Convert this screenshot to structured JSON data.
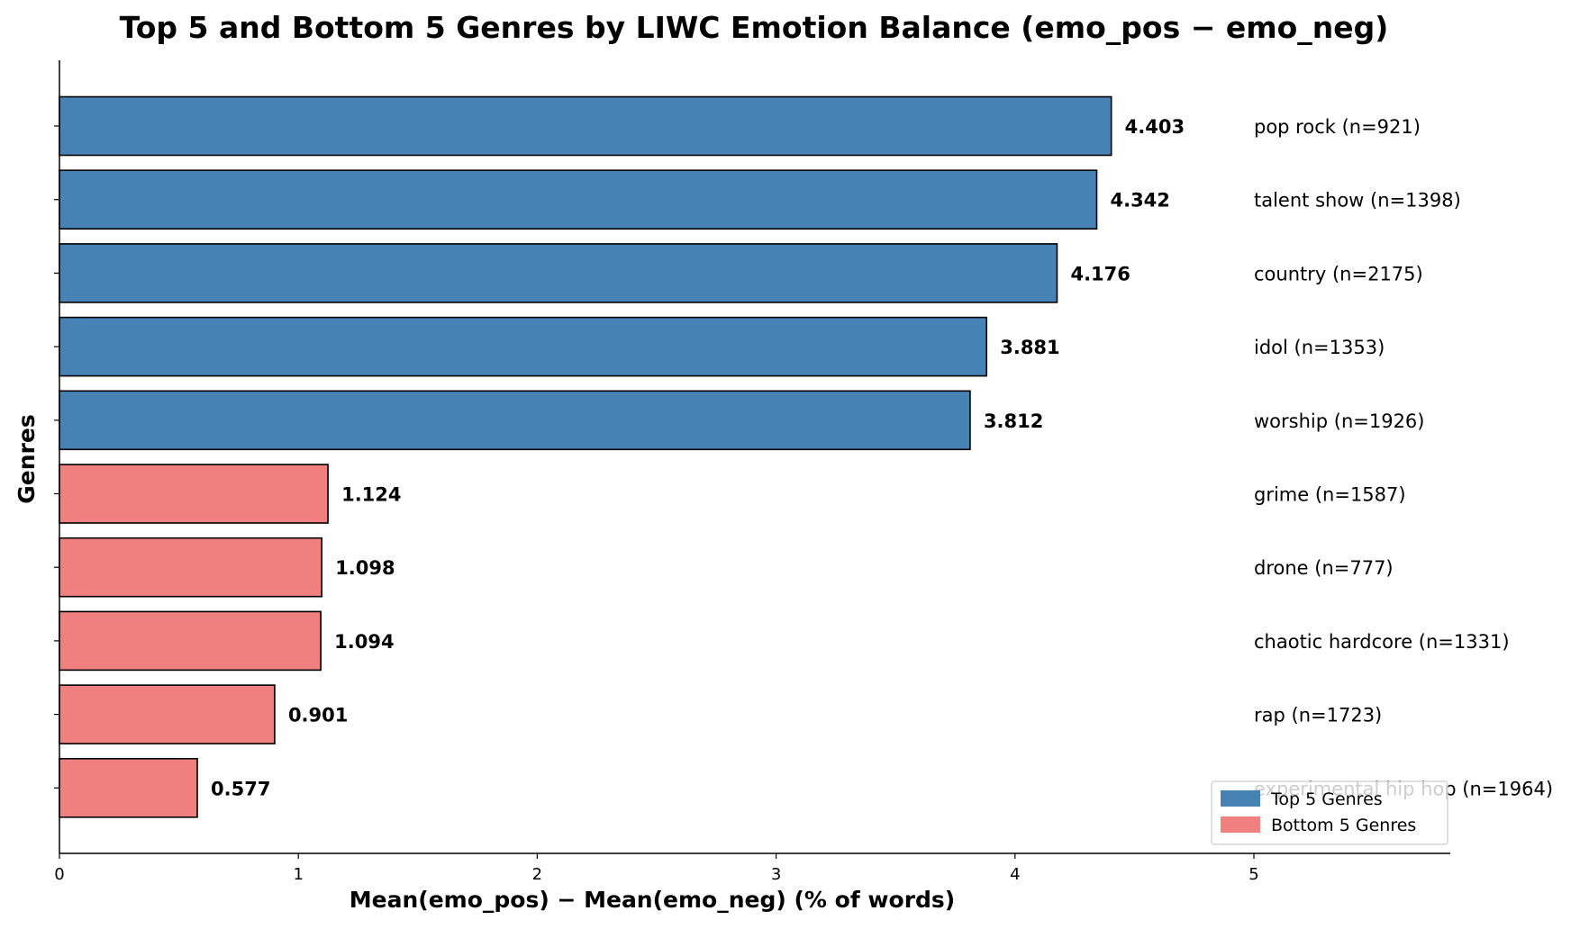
{
  "chart_data": {
    "type": "bar",
    "orientation": "horizontal",
    "title": "Top 5 and Bottom 5 Genres by LIWC Emotion Balance (emo_pos − emo_neg)",
    "xlabel": "Mean(emo_pos) − Mean(emo_neg) (% of words)",
    "ylabel": "Genres",
    "xlim": [
      0,
      5.8
    ],
    "xticks": [
      "0",
      "1",
      "2",
      "3",
      "4",
      "5"
    ],
    "grid": false,
    "legend_position": "bottom-right",
    "legend": [
      {
        "label": "Top 5 Genres",
        "color": "#4682b4"
      },
      {
        "label": "Bottom 5 Genres",
        "color": "#f08080"
      }
    ],
    "categories": [
      "pop rock (n=921)",
      "talent show (n=1398)",
      "country (n=2175)",
      "idol (n=1353)",
      "worship (n=1926)",
      "grime (n=1587)",
      "drone (n=777)",
      "chaotic hardcore (n=1331)",
      "rap (n=1723)",
      "experimental hip hop (n=1964)"
    ],
    "values": [
      4.403,
      4.342,
      4.176,
      3.881,
      3.812,
      1.124,
      1.098,
      1.094,
      0.901,
      0.577
    ],
    "value_labels": [
      "4.403",
      "4.342",
      "4.176",
      "3.881",
      "3.812",
      "1.124",
      "1.098",
      "1.094",
      "0.901",
      "0.577"
    ],
    "groups": [
      "top",
      "top",
      "top",
      "top",
      "top",
      "bottom",
      "bottom",
      "bottom",
      "bottom",
      "bottom"
    ],
    "colors": {
      "top": "#4682b4",
      "bottom": "#f08080"
    }
  }
}
